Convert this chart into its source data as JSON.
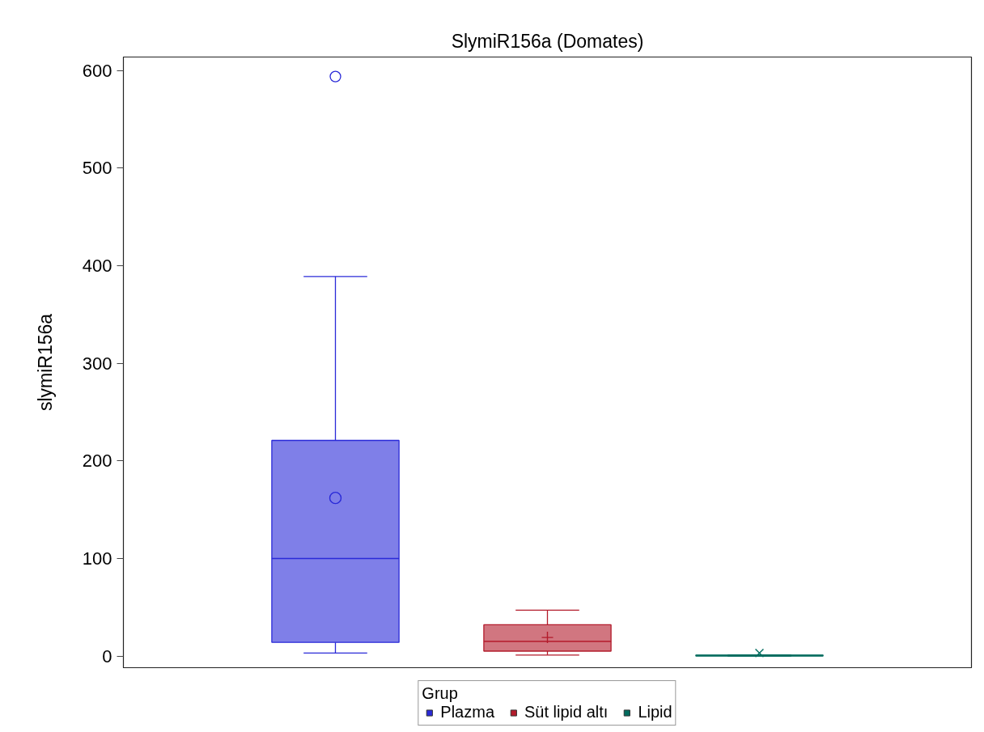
{
  "chart_data": {
    "type": "box",
    "title": "SlymiR156a (Domates)",
    "ylabel": "slymiR156a",
    "legend_title": "Grup",
    "categories": [
      null,
      null,
      null
    ],
    "series": [
      {
        "name": "Plazma",
        "color": "#2a2ad8",
        "marker": "circle",
        "boxes": [
          {
            "low": 3,
            "q1": 14,
            "median": 100,
            "q3": 221,
            "high": 389,
            "mean": 162,
            "outliers": [
              594
            ]
          },
          null,
          null
        ]
      },
      {
        "name": "Süt lipid altı",
        "color": "#b31b2b",
        "marker": "plus",
        "boxes": [
          null,
          {
            "low": 1,
            "q1": 5,
            "median": 15,
            "q3": 32,
            "high": 47,
            "mean": 19
          },
          null
        ]
      },
      {
        "name": "Lipid",
        "color": "#006b5e",
        "marker": "cross",
        "boxes": [
          null,
          null,
          {
            "low": 0,
            "q1": 0,
            "median": 0.5,
            "q3": 1,
            "high": 1,
            "mean": 3
          }
        ]
      }
    ],
    "ylim": [
      -12,
      614
    ],
    "yticks": [
      0,
      100,
      200,
      300,
      400,
      500,
      600
    ],
    "grid": false,
    "legend": "bottom",
    "tick_labels": "y"
  }
}
